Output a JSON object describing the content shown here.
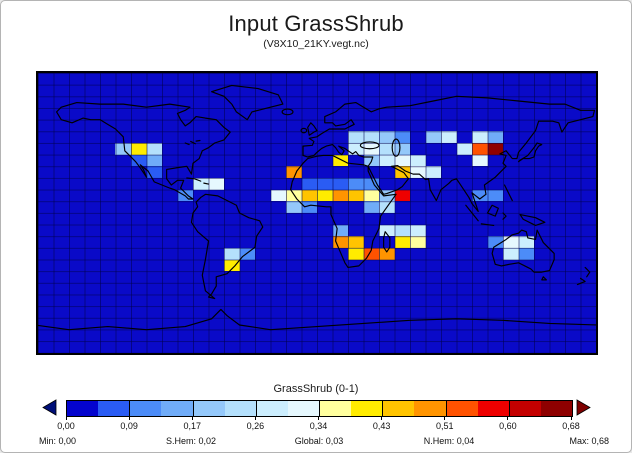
{
  "window": {
    "background": "#ffffff",
    "border_color": "#b4b4b4"
  },
  "header": {
    "title": "Input GrassShrub",
    "subtitle": "(V8X10_21KY.vegt.nc)"
  },
  "chart_data": {
    "type": "heatmap",
    "title": "Input GrassShrub",
    "subtitle": "(V8X10_21KY.vegt.nc)",
    "legend_label": "GrassShrub (0-1)",
    "projection": "equirectangular world map, 10deg x 7.5deg cells",
    "grid": {
      "cols": 36,
      "rows": 24
    },
    "value_range": [
      0.0,
      0.68
    ],
    "background_value_color": "#0a0ac8",
    "palette": [
      "#0404ce",
      "#2a5cf4",
      "#4c8cf8",
      "#70acf8",
      "#94c8fa",
      "#b4e0fc",
      "#cceefe",
      "#e6f8fe",
      "#ffff9e",
      "#ffec00",
      "#ffc400",
      "#ff9400",
      "#ff5200",
      "#ee0000",
      "#c40000",
      "#8e0000"
    ],
    "colorbar": {
      "segments": 16,
      "tick_labels": [
        "0,00",
        "0,09",
        "0,17",
        "0,26",
        "0,34",
        "0,43",
        "0,51",
        "0,60",
        "0,68"
      ],
      "left_arrow_color": "#000f78",
      "right_arrow_color": "#7e0000"
    },
    "stats": [
      "Min: 0,00",
      "S.Hem: 0,02",
      "Global: 0,03",
      "N.Hem: 0,04",
      "Max: 0,68"
    ],
    "cells": [
      [
        20,
        5,
        5
      ],
      [
        21,
        5,
        5
      ],
      [
        22,
        5,
        4
      ],
      [
        23,
        5,
        2
      ],
      [
        25,
        5,
        4
      ],
      [
        26,
        5,
        6
      ],
      [
        28,
        5,
        6
      ],
      [
        29,
        5,
        3
      ],
      [
        5,
        6,
        4
      ],
      [
        6,
        6,
        9
      ],
      [
        7,
        6,
        5
      ],
      [
        20,
        6,
        6
      ],
      [
        21,
        6,
        7
      ],
      [
        22,
        6,
        5
      ],
      [
        23,
        6,
        4
      ],
      [
        27,
        6,
        6
      ],
      [
        28,
        6,
        12
      ],
      [
        29,
        6,
        15
      ],
      [
        6,
        7,
        1
      ],
      [
        7,
        7,
        3
      ],
      [
        19,
        7,
        9
      ],
      [
        21,
        7,
        4
      ],
      [
        22,
        7,
        6
      ],
      [
        23,
        7,
        7
      ],
      [
        24,
        7,
        6
      ],
      [
        28,
        7,
        7
      ],
      [
        7,
        8,
        1
      ],
      [
        16,
        8,
        11
      ],
      [
        23,
        8,
        10
      ],
      [
        24,
        8,
        7
      ],
      [
        25,
        8,
        6
      ],
      [
        10,
        9,
        6
      ],
      [
        11,
        9,
        7
      ],
      [
        17,
        9,
        1
      ],
      [
        18,
        9,
        1
      ],
      [
        19,
        9,
        1
      ],
      [
        20,
        9,
        2
      ],
      [
        21,
        9,
        2
      ],
      [
        9,
        10,
        2
      ],
      [
        15,
        10,
        7
      ],
      [
        16,
        10,
        8
      ],
      [
        17,
        10,
        10
      ],
      [
        18,
        10,
        9
      ],
      [
        19,
        10,
        11
      ],
      [
        20,
        10,
        10
      ],
      [
        21,
        10,
        8
      ],
      [
        22,
        10,
        4
      ],
      [
        23,
        10,
        13
      ],
      [
        28,
        10,
        2
      ],
      [
        29,
        10,
        2
      ],
      [
        16,
        11,
        4
      ],
      [
        17,
        11,
        2
      ],
      [
        21,
        11,
        3
      ],
      [
        22,
        11,
        5
      ],
      [
        19,
        13,
        3
      ],
      [
        22,
        13,
        6
      ],
      [
        23,
        13,
        5
      ],
      [
        24,
        13,
        6
      ],
      [
        19,
        14,
        11
      ],
      [
        20,
        14,
        10
      ],
      [
        23,
        14,
        9
      ],
      [
        24,
        14,
        8
      ],
      [
        29,
        14,
        2
      ],
      [
        30,
        14,
        7
      ],
      [
        31,
        14,
        6
      ],
      [
        12,
        15,
        5
      ],
      [
        13,
        15,
        2
      ],
      [
        20,
        15,
        9
      ],
      [
        21,
        15,
        12
      ],
      [
        22,
        15,
        11
      ],
      [
        30,
        15,
        6
      ],
      [
        31,
        15,
        2
      ],
      [
        12,
        16,
        9
      ]
    ]
  }
}
